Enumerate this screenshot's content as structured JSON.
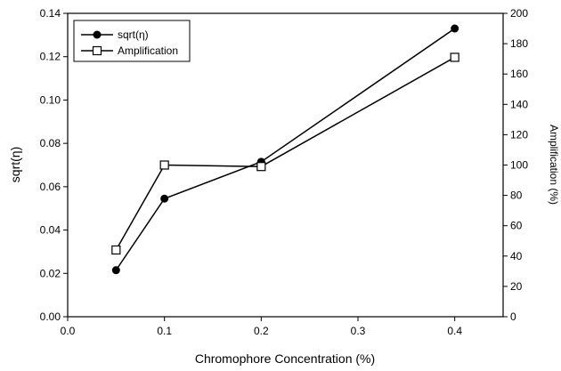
{
  "chart_data": {
    "type": "line",
    "title": "",
    "xlabel": "Chromophore Concentration (%)",
    "ylabel": "sqrt(η)",
    "y2label": "Amplification (%)",
    "xlim": [
      0.0,
      0.45
    ],
    "ylim": [
      0.0,
      0.14
    ],
    "y2lim": [
      0,
      200
    ],
    "x_ticks": [
      0.0,
      0.1,
      0.2,
      0.3,
      0.4
    ],
    "x_tick_labels": [
      "0.0",
      "0.1",
      "0.2",
      "0.3",
      "0.4"
    ],
    "y_ticks": [
      0.0,
      0.02,
      0.04,
      0.06,
      0.08,
      0.1,
      0.12,
      0.14
    ],
    "y_tick_labels": [
      "0.00",
      "0.02",
      "0.04",
      "0.06",
      "0.08",
      "0.10",
      "0.12",
      "0.14"
    ],
    "y2_ticks": [
      0,
      20,
      40,
      60,
      80,
      100,
      120,
      140,
      160,
      180,
      200
    ],
    "y2_tick_labels": [
      "0",
      "20",
      "40",
      "60",
      "80",
      "100",
      "120",
      "140",
      "160",
      "180",
      "200"
    ],
    "grid": false,
    "legend_position": "top-left",
    "series": [
      {
        "name": "sqrt(η)",
        "axis": "left",
        "marker": "filled-circle",
        "x": [
          0.05,
          0.1,
          0.2,
          0.4
        ],
        "values": [
          0.0215,
          0.0545,
          0.0715,
          0.133
        ]
      },
      {
        "name": "Amplification",
        "axis": "right",
        "marker": "open-square",
        "x": [
          0.05,
          0.1,
          0.2,
          0.4
        ],
        "values": [
          44,
          100,
          99,
          171
        ]
      }
    ]
  }
}
